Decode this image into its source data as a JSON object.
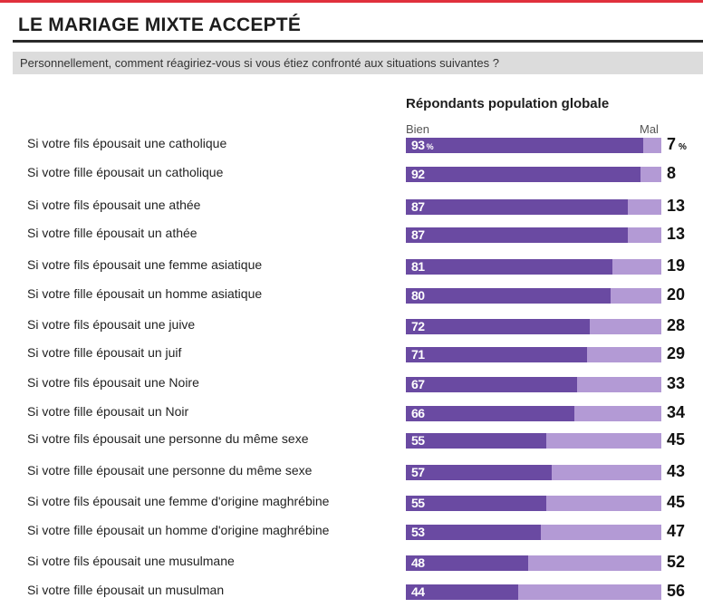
{
  "header": {
    "title": "LE MARIAGE MIXTE ACCEPTÉ",
    "question": "Personnellement, comment réagiriez-vous si vous étiez confronté aux situations suivantes ?"
  },
  "chart_data": {
    "type": "bar",
    "orientation": "horizontal",
    "stacked": true,
    "title": "Répondants population globale",
    "legend": [
      "Bien",
      "Mal"
    ],
    "unit": "%",
    "categories": [
      "Si votre fils épousait une catholique",
      "Si votre fille épousait un catholique",
      "Si votre fils épousait une athée",
      "Si votre fille épousait un athée",
      "Si votre fils épousait une femme asiatique",
      "Si votre fille épousait un homme asiatique",
      "Si votre fils épousait une juive",
      "Si votre fille épousait un juif",
      "Si votre fils épousait une Noire",
      "Si votre fille épousait un Noir",
      "Si votre fils épousait une personne du même sexe",
      "Si votre fille épousait une personne du même sexe",
      "Si votre fils épousait une femme d'origine maghrébine",
      "Si votre fille épousait un homme d'origine maghrébine",
      "Si votre fils épousait une musulmane",
      "Si votre fille épousait un musulman"
    ],
    "series": [
      {
        "name": "Bien",
        "color": "#6a4aa2",
        "values": [
          93,
          92,
          87,
          87,
          81,
          80,
          72,
          71,
          67,
          66,
          55,
          57,
          55,
          53,
          48,
          44
        ]
      },
      {
        "name": "Mal",
        "color": "#b39ad5",
        "values": [
          7,
          8,
          13,
          13,
          19,
          20,
          28,
          29,
          33,
          34,
          45,
          43,
          45,
          47,
          52,
          56
        ]
      }
    ],
    "xlim": [
      0,
      100
    ]
  }
}
